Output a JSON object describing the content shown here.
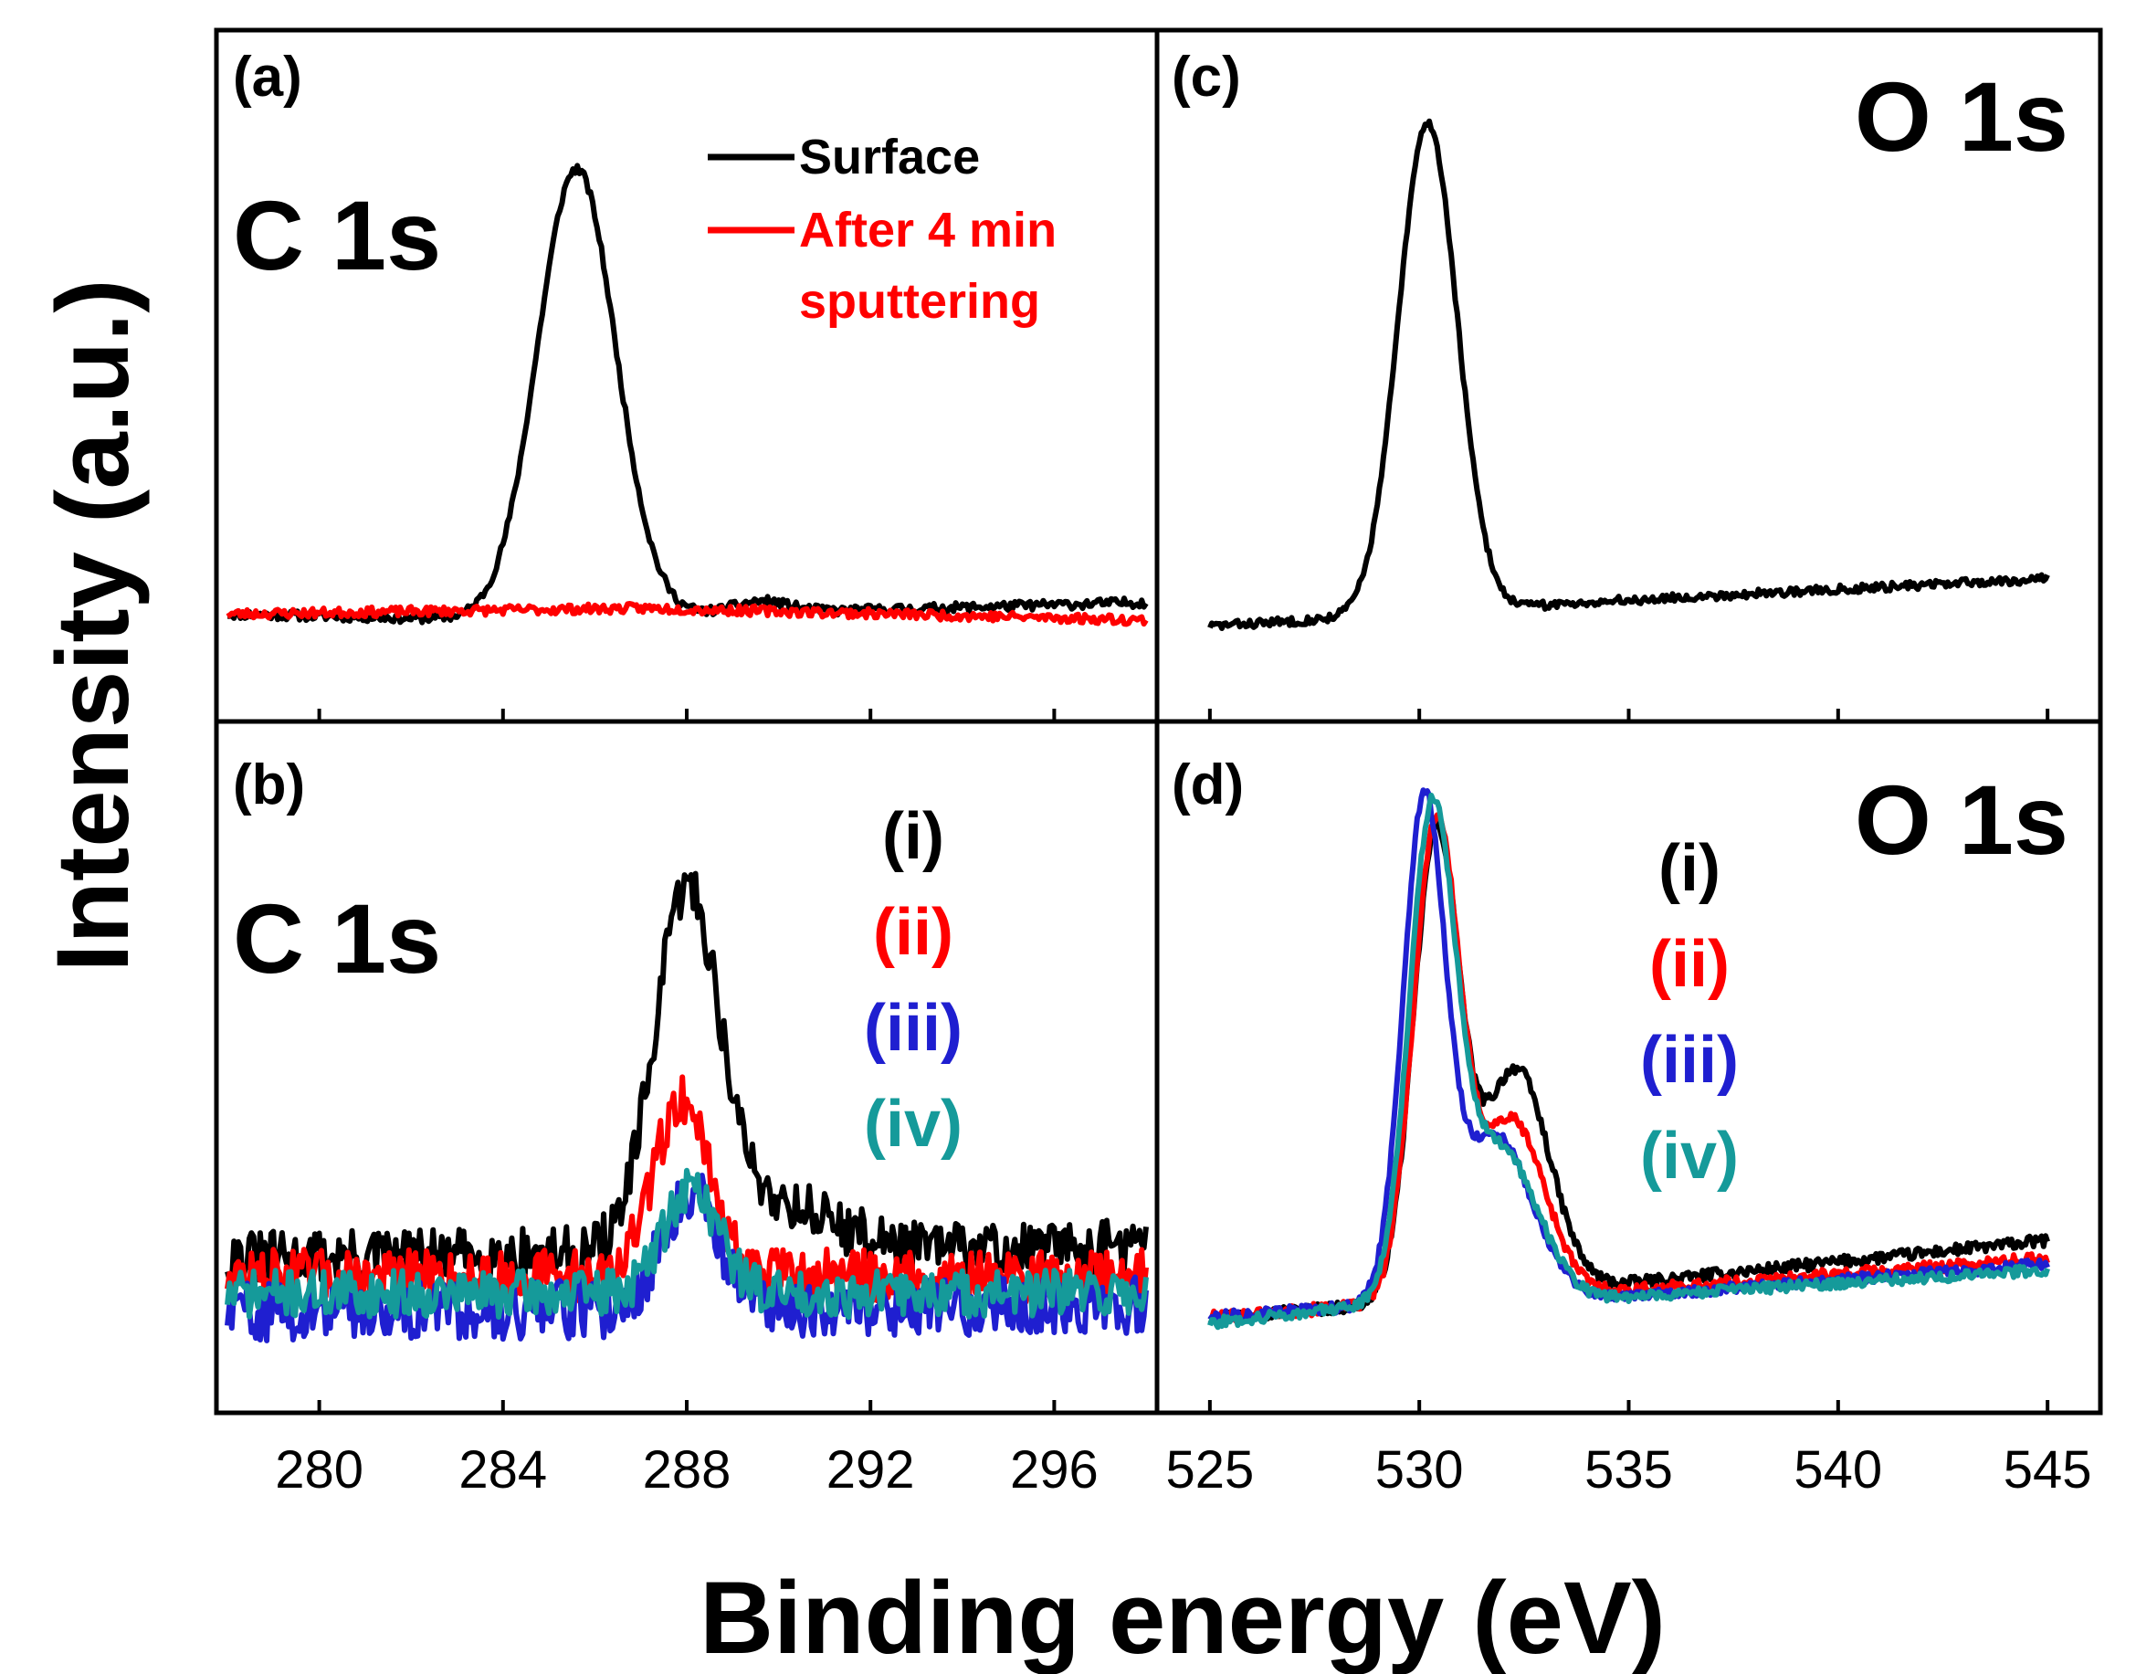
{
  "figure": {
    "ylabel": "Intensity (a.u.)",
    "xlabel": "Binding energy (eV)"
  },
  "chart_data": [
    {
      "type": "line",
      "panel": "(a)",
      "annotation": "C 1s",
      "xlim": [
        278,
        298
      ],
      "ylim": [
        0,
        1
      ],
      "xticks": [
        280,
        284,
        288,
        292,
        296
      ],
      "show_xtick_labels": false,
      "legend": [
        {
          "label": "Surface",
          "color": "#000000"
        },
        {
          "label": "After 4 min sputtering",
          "label_lines": [
            "After 4 min",
            "sputtering"
          ],
          "color": "#ff0000"
        }
      ],
      "series": [
        {
          "name": "Surface",
          "color": "#000000",
          "noise": 0.008,
          "seed": 11,
          "baseline": [
            [
              278,
              0.12
            ],
            [
              284,
              0.11
            ],
            [
              298,
              0.14
            ]
          ],
          "peaks": [
            [
              285.6,
              0.76,
              0.85
            ],
            [
              289.6,
              0.02,
              0.6
            ]
          ]
        },
        {
          "name": "After 4 min sputtering",
          "color": "#ff0000",
          "noise": 0.008,
          "seed": 23,
          "baseline": [
            [
              278,
              0.12
            ],
            [
              287,
              0.13
            ],
            [
              298,
              0.11
            ]
          ],
          "peaks": []
        }
      ]
    },
    {
      "type": "line",
      "panel": "(b)",
      "annotation": "C 1s",
      "xlim": [
        278,
        298
      ],
      "ylim": [
        0,
        1
      ],
      "xticks": [
        280,
        284,
        288,
        292,
        296
      ],
      "xtick_labels": [
        "280",
        "284",
        "288",
        "292",
        "296"
      ],
      "legend": [
        {
          "label": "(i)",
          "color": "#000000"
        },
        {
          "label": "(ii)",
          "color": "#ff0000"
        },
        {
          "label": "(iii)",
          "color": "#1f1fd0"
        },
        {
          "label": "(iv)",
          "color": "#159a9a"
        }
      ],
      "series": [
        {
          "name": "(i)",
          "color": "#000000",
          "noise": 0.045,
          "seed": 31,
          "baseline": [
            [
              278,
              0.2
            ],
            [
              298,
              0.22
            ]
          ],
          "peaks": [
            [
              288.0,
              0.6,
              0.7
            ],
            [
              290.0,
              0.08,
              1.2
            ]
          ]
        },
        {
          "name": "(ii)",
          "color": "#ff0000",
          "noise": 0.045,
          "seed": 47,
          "baseline": [
            [
              278,
              0.17
            ],
            [
              298,
              0.17
            ]
          ],
          "peaks": [
            [
              287.9,
              0.3,
              0.6
            ]
          ]
        },
        {
          "name": "(iii)",
          "color": "#1f1fd0",
          "noise": 0.05,
          "seed": 59,
          "baseline": [
            [
              278,
              0.11
            ],
            [
              298,
              0.12
            ]
          ],
          "peaks": [
            [
              288.1,
              0.2,
              0.6
            ]
          ]
        },
        {
          "name": "(iv)",
          "color": "#159a9a",
          "noise": 0.04,
          "seed": 71,
          "baseline": [
            [
              278,
              0.14
            ],
            [
              298,
              0.14
            ]
          ],
          "peaks": [
            [
              288.1,
              0.18,
              0.6
            ]
          ]
        }
      ]
    },
    {
      "type": "line",
      "panel": "(c)",
      "annotation": "O 1s",
      "xlim": [
        524,
        546
      ],
      "ylim": [
        0,
        1
      ],
      "xticks": [
        525,
        530,
        535,
        540,
        545
      ],
      "show_xtick_labels": false,
      "legend": [],
      "series": [
        {
          "name": "O 1s",
          "color": "#000000",
          "noise": 0.007,
          "seed": 83,
          "baseline": [
            [
              525,
              0.1
            ],
            [
              530,
              0.12
            ],
            [
              534,
              0.14
            ],
            [
              545,
              0.18
            ]
          ],
          "peaks": [
            [
              530.2,
              0.83,
              0.7
            ]
          ]
        }
      ]
    },
    {
      "type": "line",
      "panel": "(d)",
      "annotation": "O 1s",
      "xlim": [
        524,
        546
      ],
      "ylim": [
        0,
        1
      ],
      "xticks": [
        525,
        530,
        535,
        540,
        545
      ],
      "xtick_labels": [
        "525",
        "530",
        "535",
        "540",
        "545"
      ],
      "legend": [
        {
          "label": "(i)",
          "color": "#000000"
        },
        {
          "label": "(ii)",
          "color": "#ff0000"
        },
        {
          "label": "(iii)",
          "color": "#1f1fd0"
        },
        {
          "label": "(iv)",
          "color": "#159a9a"
        }
      ],
      "series": [
        {
          "name": "(i)",
          "color": "#000000",
          "noise": 0.01,
          "seed": 97,
          "baseline": [
            [
              525,
              0.1
            ],
            [
              528.8,
              0.12
            ],
            [
              534,
              0.15
            ],
            [
              545,
              0.23
            ]
          ],
          "peaks": [
            [
              530.4,
              0.78,
              0.55
            ],
            [
              532.3,
              0.38,
              0.8
            ]
          ]
        },
        {
          "name": "(ii)",
          "color": "#ff0000",
          "noise": 0.01,
          "seed": 101,
          "baseline": [
            [
              525,
              0.1
            ],
            [
              528.8,
              0.12
            ],
            [
              534,
              0.14
            ],
            [
              545,
              0.2
            ]
          ],
          "peaks": [
            [
              530.4,
              0.8,
              0.55
            ],
            [
              532.2,
              0.3,
              0.8
            ]
          ]
        },
        {
          "name": "(iii)",
          "color": "#1f1fd0",
          "noise": 0.009,
          "seed": 113,
          "baseline": [
            [
              525,
              0.1
            ],
            [
              528.8,
              0.12
            ],
            [
              534,
              0.13
            ],
            [
              545,
              0.19
            ]
          ],
          "peaks": [
            [
              530.1,
              0.82,
              0.5
            ],
            [
              531.8,
              0.28,
              0.9
            ]
          ]
        },
        {
          "name": "(iv)",
          "color": "#159a9a",
          "noise": 0.009,
          "seed": 127,
          "baseline": [
            [
              525,
              0.09
            ],
            [
              528.8,
              0.12
            ],
            [
              534,
              0.13
            ],
            [
              545,
              0.18
            ]
          ],
          "peaks": [
            [
              530.3,
              0.8,
              0.55
            ],
            [
              531.9,
              0.26,
              0.9
            ]
          ]
        }
      ]
    }
  ]
}
